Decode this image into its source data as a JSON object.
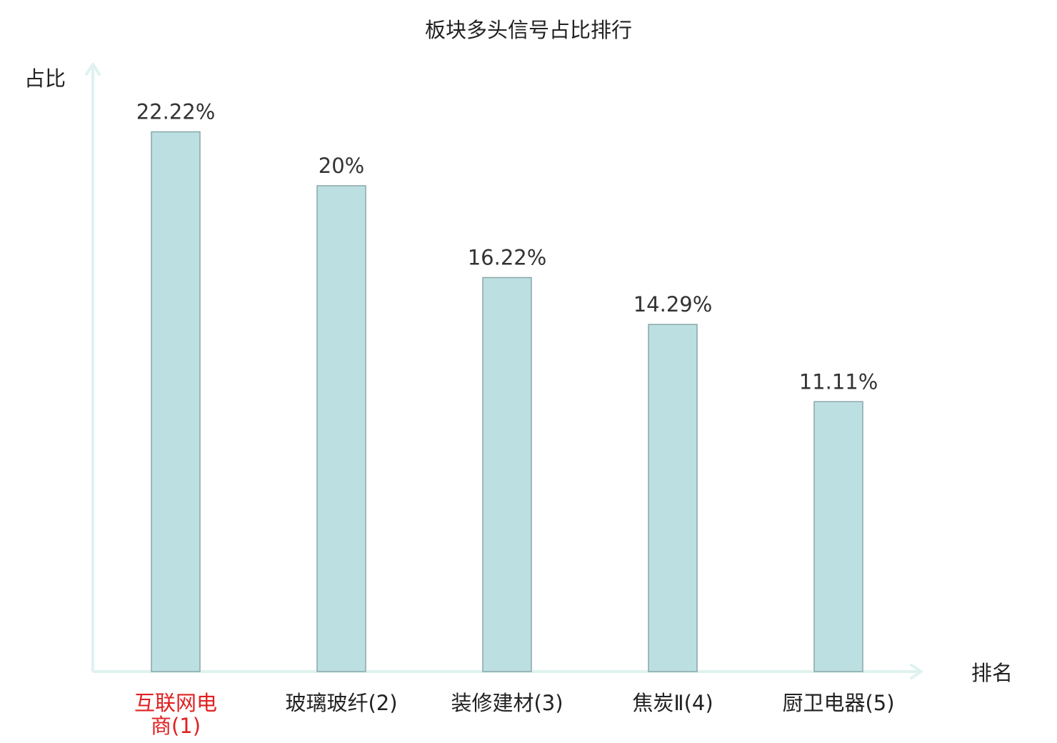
{
  "chart_data": {
    "type": "bar",
    "title": "板块多头信号占比排行",
    "xlabel": "排名",
    "ylabel": "占比",
    "categories": [
      "互联网电商(1)",
      "玻璃玻纤(2)",
      "装修建材(3)",
      "焦炭Ⅱ(4)",
      "厨卫电器(5)"
    ],
    "category_lines": [
      [
        "互联网电",
        "商(1)"
      ],
      [
        "玻璃玻纤(2)"
      ],
      [
        "装修建材(3)"
      ],
      [
        "焦炭Ⅱ(4)"
      ],
      [
        "厨卫电器(5)"
      ]
    ],
    "values": [
      22.22,
      20,
      16.22,
      14.29,
      11.11
    ],
    "value_labels": [
      "22.22%",
      "20%",
      "16.22%",
      "14.29%",
      "11.11%"
    ],
    "ylim": [
      0,
      25
    ],
    "grid": false,
    "highlight_index": 0,
    "colors": {
      "bar_fill": "#bce0e2",
      "bar_stroke": "#8aa6a8",
      "axis": "#dff2ef",
      "highlight_label": "#e02020",
      "label": "#222222"
    }
  }
}
